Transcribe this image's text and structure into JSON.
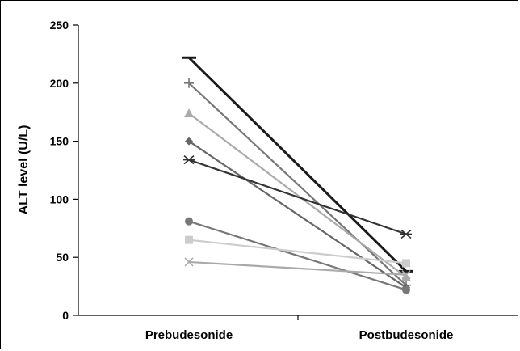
{
  "chart_data": {
    "type": "line",
    "categories": [
      "Prebudesonide",
      "Postbudesonide"
    ],
    "ylabel": "ALT level (U/L)",
    "ylim": [
      0,
      250
    ],
    "yticks": [
      0,
      50,
      100,
      150,
      200,
      250
    ],
    "grid": false,
    "series": [
      {
        "values": [
          222,
          38
        ],
        "color": "#1a1a1a",
        "marker": "dash"
      },
      {
        "values": [
          200,
          26
        ],
        "color": "#777777",
        "marker": "plus"
      },
      {
        "values": [
          174,
          33
        ],
        "color": "#aaaaaa",
        "marker": "triangle"
      },
      {
        "values": [
          150,
          24
        ],
        "color": "#666666",
        "marker": "diamond"
      },
      {
        "values": [
          134,
          70
        ],
        "color": "#333333",
        "marker": "asterisk"
      },
      {
        "values": [
          81,
          22
        ],
        "color": "#777777",
        "marker": "circle"
      },
      {
        "values": [
          65,
          45
        ],
        "color": "#cccccc",
        "marker": "square"
      },
      {
        "values": [
          46,
          35
        ],
        "color": "#aaaaaa",
        "marker": "x"
      }
    ]
  }
}
